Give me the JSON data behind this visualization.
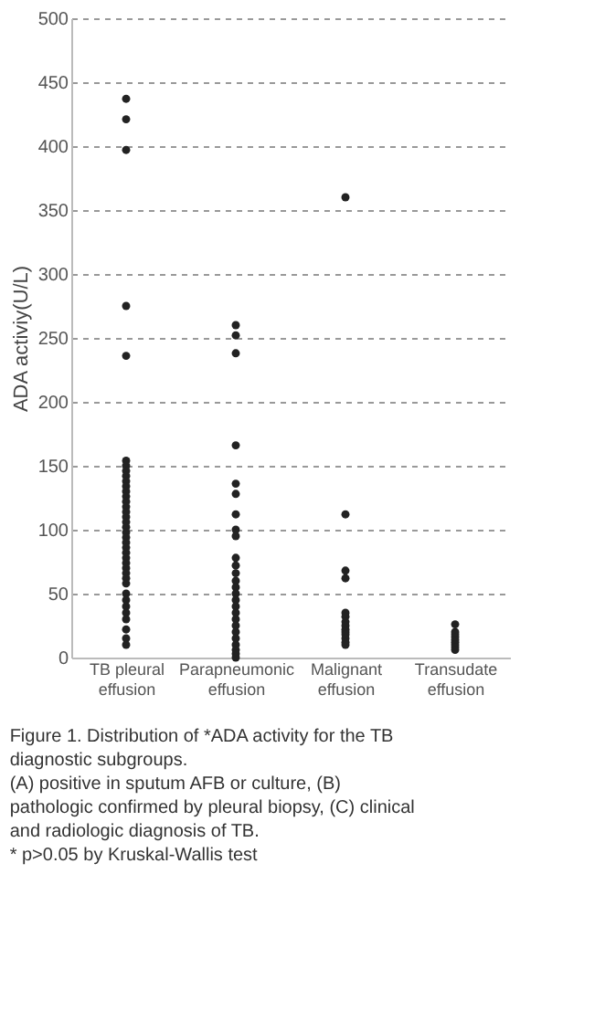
{
  "chart_data": {
    "type": "scatter",
    "ylabel": "ADA activiy(U/L)",
    "categories": [
      "TB pleural effusion",
      "Parapneumonic effusion",
      "Malignant effusion",
      "Transudate effusion"
    ],
    "series": [
      {
        "color": "#222222",
        "x": [
          "TB pleural effusion",
          "TB pleural effusion",
          "TB pleural effusion",
          "TB pleural effusion",
          "TB pleural effusion",
          "TB pleural effusion",
          "TB pleural effusion",
          "TB pleural effusion",
          "TB pleural effusion",
          "TB pleural effusion",
          "TB pleural effusion",
          "TB pleural effusion",
          "TB pleural effusion",
          "TB pleural effusion",
          "TB pleural effusion",
          "TB pleural effusion",
          "TB pleural effusion",
          "TB pleural effusion",
          "TB pleural effusion",
          "TB pleural effusion",
          "TB pleural effusion",
          "TB pleural effusion",
          "TB pleural effusion",
          "TB pleural effusion",
          "TB pleural effusion",
          "TB pleural effusion",
          "TB pleural effusion",
          "TB pleural effusion",
          "TB pleural effusion",
          "TB pleural effusion",
          "TB pleural effusion",
          "TB pleural effusion",
          "TB pleural effusion",
          "TB pleural effusion",
          "TB pleural effusion",
          "TB pleural effusion",
          "TB pleural effusion",
          "TB pleural effusion",
          "Parapneumonic effusion",
          "Parapneumonic effusion",
          "Parapneumonic effusion",
          "Parapneumonic effusion",
          "Parapneumonic effusion",
          "Parapneumonic effusion",
          "Parapneumonic effusion",
          "Parapneumonic effusion",
          "Parapneumonic effusion",
          "Parapneumonic effusion",
          "Parapneumonic effusion",
          "Parapneumonic effusion",
          "Parapneumonic effusion",
          "Parapneumonic effusion",
          "Parapneumonic effusion",
          "Parapneumonic effusion",
          "Parapneumonic effusion",
          "Parapneumonic effusion",
          "Parapneumonic effusion",
          "Parapneumonic effusion",
          "Parapneumonic effusion",
          "Parapneumonic effusion",
          "Parapneumonic effusion",
          "Parapneumonic effusion",
          "Parapneumonic effusion",
          "Parapneumonic effusion",
          "Malignant effusion",
          "Malignant effusion",
          "Malignant effusion",
          "Malignant effusion",
          "Malignant effusion",
          "Malignant effusion",
          "Malignant effusion",
          "Malignant effusion",
          "Malignant effusion",
          "Malignant effusion",
          "Malignant effusion",
          "Malignant effusion",
          "Malignant effusion",
          "Malignant effusion",
          "Transudate effusion",
          "Transudate effusion",
          "Transudate effusion",
          "Transudate effusion",
          "Transudate effusion",
          "Transudate effusion",
          "Transudate effusion",
          "Transudate effusion",
          "Transudate effusion"
        ],
        "values": [
          437,
          421,
          397,
          275,
          236,
          154,
          150,
          146,
          142,
          138,
          134,
          130,
          126,
          122,
          118,
          114,
          110,
          106,
          102,
          98,
          94,
          90,
          86,
          82,
          78,
          74,
          70,
          66,
          62,
          58,
          50,
          45,
          40,
          35,
          30,
          22,
          15,
          10,
          260,
          252,
          238,
          166,
          136,
          128,
          112,
          100,
          95,
          78,
          72,
          66,
          60,
          55,
          50,
          45,
          40,
          35,
          30,
          25,
          20,
          15,
          10,
          6,
          3,
          0,
          360,
          112,
          68,
          62,
          35,
          32,
          28,
          25,
          22,
          20,
          18,
          15,
          12,
          10,
          26,
          20,
          18,
          16,
          14,
          12,
          10,
          8,
          6
        ]
      }
    ],
    "ylim": [
      0,
      500
    ],
    "yticks": [
      0,
      50,
      100,
      150,
      200,
      250,
      300,
      350,
      400,
      450,
      500
    ],
    "grid": "y",
    "marker": "circle",
    "legend": false,
    "annotations": [
      "Figure 1. Distribution of *ADA activity for the TB diagnostic subgroups.",
      "(A) positive in sputum AFB or culture, (B) pathologic confirmed by pleural biopsy, (C) clinical and radiologic diagnosis of TB.",
      "* p>0.05 by Kruskal-Wallis test"
    ]
  }
}
